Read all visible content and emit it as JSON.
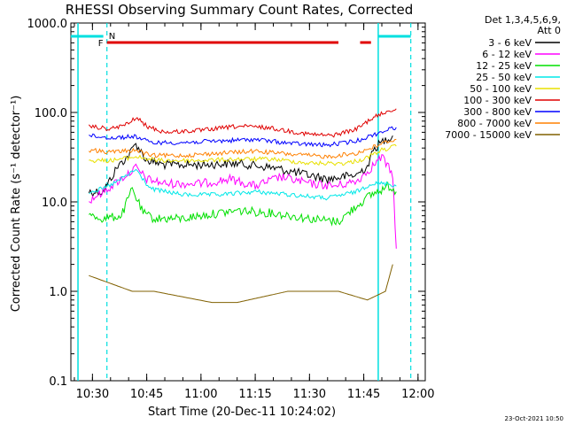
{
  "chart_data": {
    "type": "line",
    "title": "RHESSI Observing Summary Count Rates, Corrected",
    "xlabel": "Start Time (20-Dec-11 10:24:02)",
    "ylabel": "Corrected Count Rate (s⁻¹ detector⁻¹)",
    "y_scale": "log",
    "ylim": [
      0.1,
      1000
    ],
    "xlim": [
      "10:24:02",
      "12:02:00"
    ],
    "x_ticks": [
      "10:30",
      "10:45",
      "11:00",
      "11:15",
      "11:30",
      "11:45",
      "12:00"
    ],
    "y_ticks": [
      "0.1",
      "1.0",
      "10.0",
      "100.0",
      "1000.0"
    ],
    "grid": false,
    "legend_position": "top-right",
    "legend_header": [
      "Det 1,3,4,5,6,9,",
      "Att 0"
    ],
    "footer_date": "23-Oct-2021 10:50",
    "flags": [
      {
        "label": "F",
        "color": "#e00000",
        "segments": [
          [
            "10:34",
            "11:38"
          ],
          [
            "11:44",
            "11:47"
          ]
        ]
      },
      {
        "label": "N",
        "color": "#00c8ff",
        "segments": [
          [
            "10:34",
            "10:34"
          ]
        ]
      }
    ],
    "night_lines": {
      "solid": [
        "10:26",
        "11:49"
      ],
      "dashed": [
        "10:34",
        "11:58"
      ],
      "top_bars": [
        [
          "10:24",
          "10:33"
        ],
        [
          "11:49",
          "11:58"
        ]
      ],
      "color": "#00e0e0"
    },
    "series": [
      {
        "name": "3 - 6 keV",
        "color": "#000000",
        "x": [
          "10:29",
          "10:33",
          "10:37",
          "10:40",
          "10:42",
          "10:45",
          "10:50",
          "11:00",
          "11:10",
          "11:20",
          "11:27",
          "11:35",
          "11:43",
          "11:46",
          "11:48",
          "11:51",
          "11:53"
        ],
        "y": [
          13,
          13,
          25,
          33,
          45,
          29,
          26,
          26,
          27,
          24,
          21,
          18,
          20,
          25,
          40,
          50,
          55
        ]
      },
      {
        "name": "6 - 12 keV",
        "color": "#ff00ff",
        "x": [
          "10:29",
          "10:30",
          "10:33",
          "10:37",
          "10:42",
          "10:45",
          "10:50",
          "11:00",
          "11:08",
          "11:15",
          "11:22",
          "11:30",
          "11:37",
          "11:43",
          "11:46",
          "11:50",
          "11:53",
          "11:54"
        ],
        "y": [
          10,
          11,
          13,
          17,
          24,
          18,
          16,
          16,
          18,
          15,
          19,
          16,
          15,
          17,
          22,
          32,
          20,
          3
        ]
      },
      {
        "name": "12 - 25 keV",
        "color": "#00e000",
        "x": [
          "10:29",
          "10:33",
          "10:38",
          "10:41",
          "10:44",
          "10:47",
          "10:55",
          "11:00",
          "11:10",
          "11:20",
          "11:30",
          "11:38",
          "11:43",
          "11:47",
          "11:52",
          "11:54"
        ],
        "y": [
          7,
          6.5,
          7,
          14,
          7.5,
          6.5,
          6.5,
          7,
          8,
          7.5,
          6.5,
          6,
          9,
          12,
          15,
          13
        ]
      },
      {
        "name": "25 - 50 keV",
        "color": "#00e8e8",
        "x": [
          "10:29",
          "10:33",
          "10:37",
          "10:42",
          "10:46",
          "10:55",
          "11:05",
          "11:15",
          "11:25",
          "11:35",
          "11:43",
          "11:47",
          "11:52",
          "11:54"
        ],
        "y": [
          13,
          14,
          17,
          23,
          14,
          12,
          12,
          13,
          12,
          11,
          13,
          16,
          16,
          15
        ]
      },
      {
        "name": "50 - 100 keV",
        "color": "#e8e000",
        "x": [
          "10:29",
          "10:35",
          "10:42",
          "10:48",
          "11:00",
          "11:10",
          "11:20",
          "11:30",
          "11:40",
          "11:45",
          "11:50",
          "11:54"
        ],
        "y": [
          29,
          29,
          32,
          29,
          29,
          30,
          30,
          27,
          27,
          30,
          38,
          42
        ]
      },
      {
        "name": "100 - 300 keV",
        "color": "#e00000",
        "x": [
          "10:29",
          "10:35",
          "10:40",
          "10:42",
          "10:45",
          "10:50",
          "11:00",
          "11:10",
          "11:18",
          "11:30",
          "11:36",
          "11:43",
          "11:47",
          "11:52",
          "11:54"
        ],
        "y": [
          70,
          65,
          75,
          88,
          70,
          60,
          63,
          70,
          68,
          57,
          55,
          65,
          85,
          105,
          110
        ]
      },
      {
        "name": "300 - 800 keV",
        "color": "#0000ff",
        "x": [
          "10:29",
          "10:35",
          "10:42",
          "10:46",
          "10:55",
          "11:05",
          "11:15",
          "11:25",
          "11:35",
          "11:43",
          "11:47",
          "11:52",
          "11:54"
        ],
        "y": [
          55,
          52,
          54,
          46,
          46,
          48,
          50,
          45,
          43,
          48,
          55,
          65,
          68
        ]
      },
      {
        "name": "800 - 7000 keV",
        "color": "#ff8000",
        "x": [
          "10:29",
          "10:35",
          "10:42",
          "10:46",
          "10:55",
          "11:05",
          "11:15",
          "11:25",
          "11:35",
          "11:43",
          "11:47",
          "11:52",
          "11:54"
        ],
        "y": [
          38,
          36,
          38,
          33,
          33,
          35,
          37,
          34,
          32,
          35,
          40,
          48,
          50
        ]
      },
      {
        "name": "7000 - 15000 keV",
        "color": "#806000",
        "x": [
          "10:29",
          "10:41",
          "10:47",
          "11:03",
          "11:10",
          "11:24",
          "11:38",
          "11:46",
          "11:51",
          "11:53"
        ],
        "y": [
          1.5,
          1.0,
          1.0,
          0.75,
          0.75,
          1.0,
          1.0,
          0.8,
          1.0,
          2.0
        ]
      }
    ]
  }
}
